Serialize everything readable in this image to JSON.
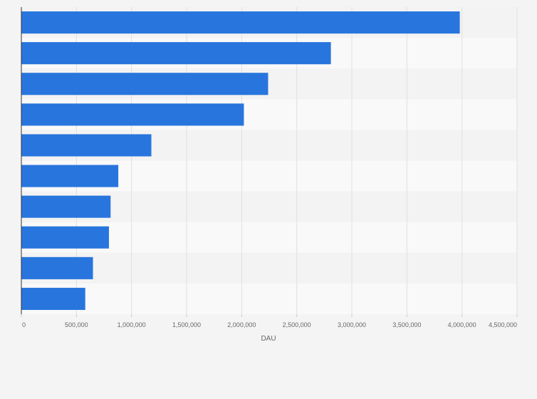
{
  "chart_data": {
    "type": "bar",
    "orientation": "horizontal",
    "categories": [
      "",
      "",
      "",
      "",
      "",
      "",
      "",
      "",
      "",
      ""
    ],
    "values": [
      3980000,
      2810000,
      2240000,
      2020000,
      1180000,
      880000,
      810000,
      795000,
      650000,
      580000
    ],
    "xlabel": "DAU",
    "ylabel": "",
    "xlim": [
      0,
      4500000
    ],
    "xticks": [
      0,
      500000,
      1000000,
      1500000,
      2000000,
      2500000,
      3000000,
      3500000,
      4000000,
      4500000
    ],
    "xtick_labels": [
      "0",
      "500,000",
      "1,000,000",
      "1,500,000",
      "2,000,000",
      "2,500,000",
      "3,000,000",
      "3,500,000",
      "4,000,000",
      "4,500,000"
    ],
    "grid": true,
    "colors": {
      "bar": "#2876dd",
      "band_light": "#f9f9f9",
      "band_dark": "#f3f3f3",
      "grid": "#e0e0e0",
      "axis": "#333333",
      "page": "#f4f4f4"
    }
  }
}
